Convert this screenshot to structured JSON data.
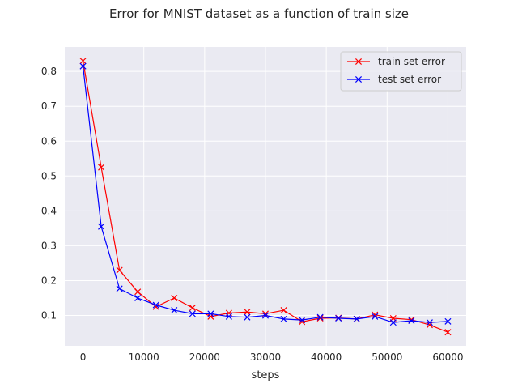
{
  "chart_data": {
    "type": "line",
    "title": "Error for MNIST dataset as a function of train size",
    "xlabel": "steps",
    "ylabel": "",
    "xlim": [
      -3000,
      63000
    ],
    "ylim": [
      0.013,
      0.87
    ],
    "x_ticks": [
      0,
      10000,
      20000,
      30000,
      40000,
      50000,
      60000
    ],
    "y_ticks": [
      0.1,
      0.2,
      0.3,
      0.4,
      0.5,
      0.6,
      0.7,
      0.8
    ],
    "grid": true,
    "legend_position": "top-right",
    "x": [
      0,
      3000,
      6000,
      9000,
      12000,
      15000,
      18000,
      21000,
      24000,
      27000,
      30000,
      33000,
      36000,
      39000,
      42000,
      45000,
      48000,
      51000,
      54000,
      57000,
      60000
    ],
    "series": [
      {
        "name": "train set error",
        "color": "#ff0000",
        "marker": "x",
        "values": [
          0.83,
          0.525,
          0.23,
          0.168,
          0.125,
          0.15,
          0.122,
          0.097,
          0.107,
          0.11,
          0.105,
          0.115,
          0.082,
          0.092,
          0.093,
          0.09,
          0.102,
          0.092,
          0.088,
          0.073,
          0.052
        ]
      },
      {
        "name": "test set error",
        "color": "#0000ff",
        "marker": "x",
        "values": [
          0.815,
          0.355,
          0.177,
          0.15,
          0.13,
          0.115,
          0.105,
          0.105,
          0.097,
          0.095,
          0.1,
          0.09,
          0.087,
          0.095,
          0.092,
          0.09,
          0.097,
          0.08,
          0.085,
          0.08,
          0.083
        ]
      }
    ]
  },
  "colors": {
    "plot_background": "#eaeaf2",
    "grid": "#ffffff",
    "text": "#262626"
  }
}
